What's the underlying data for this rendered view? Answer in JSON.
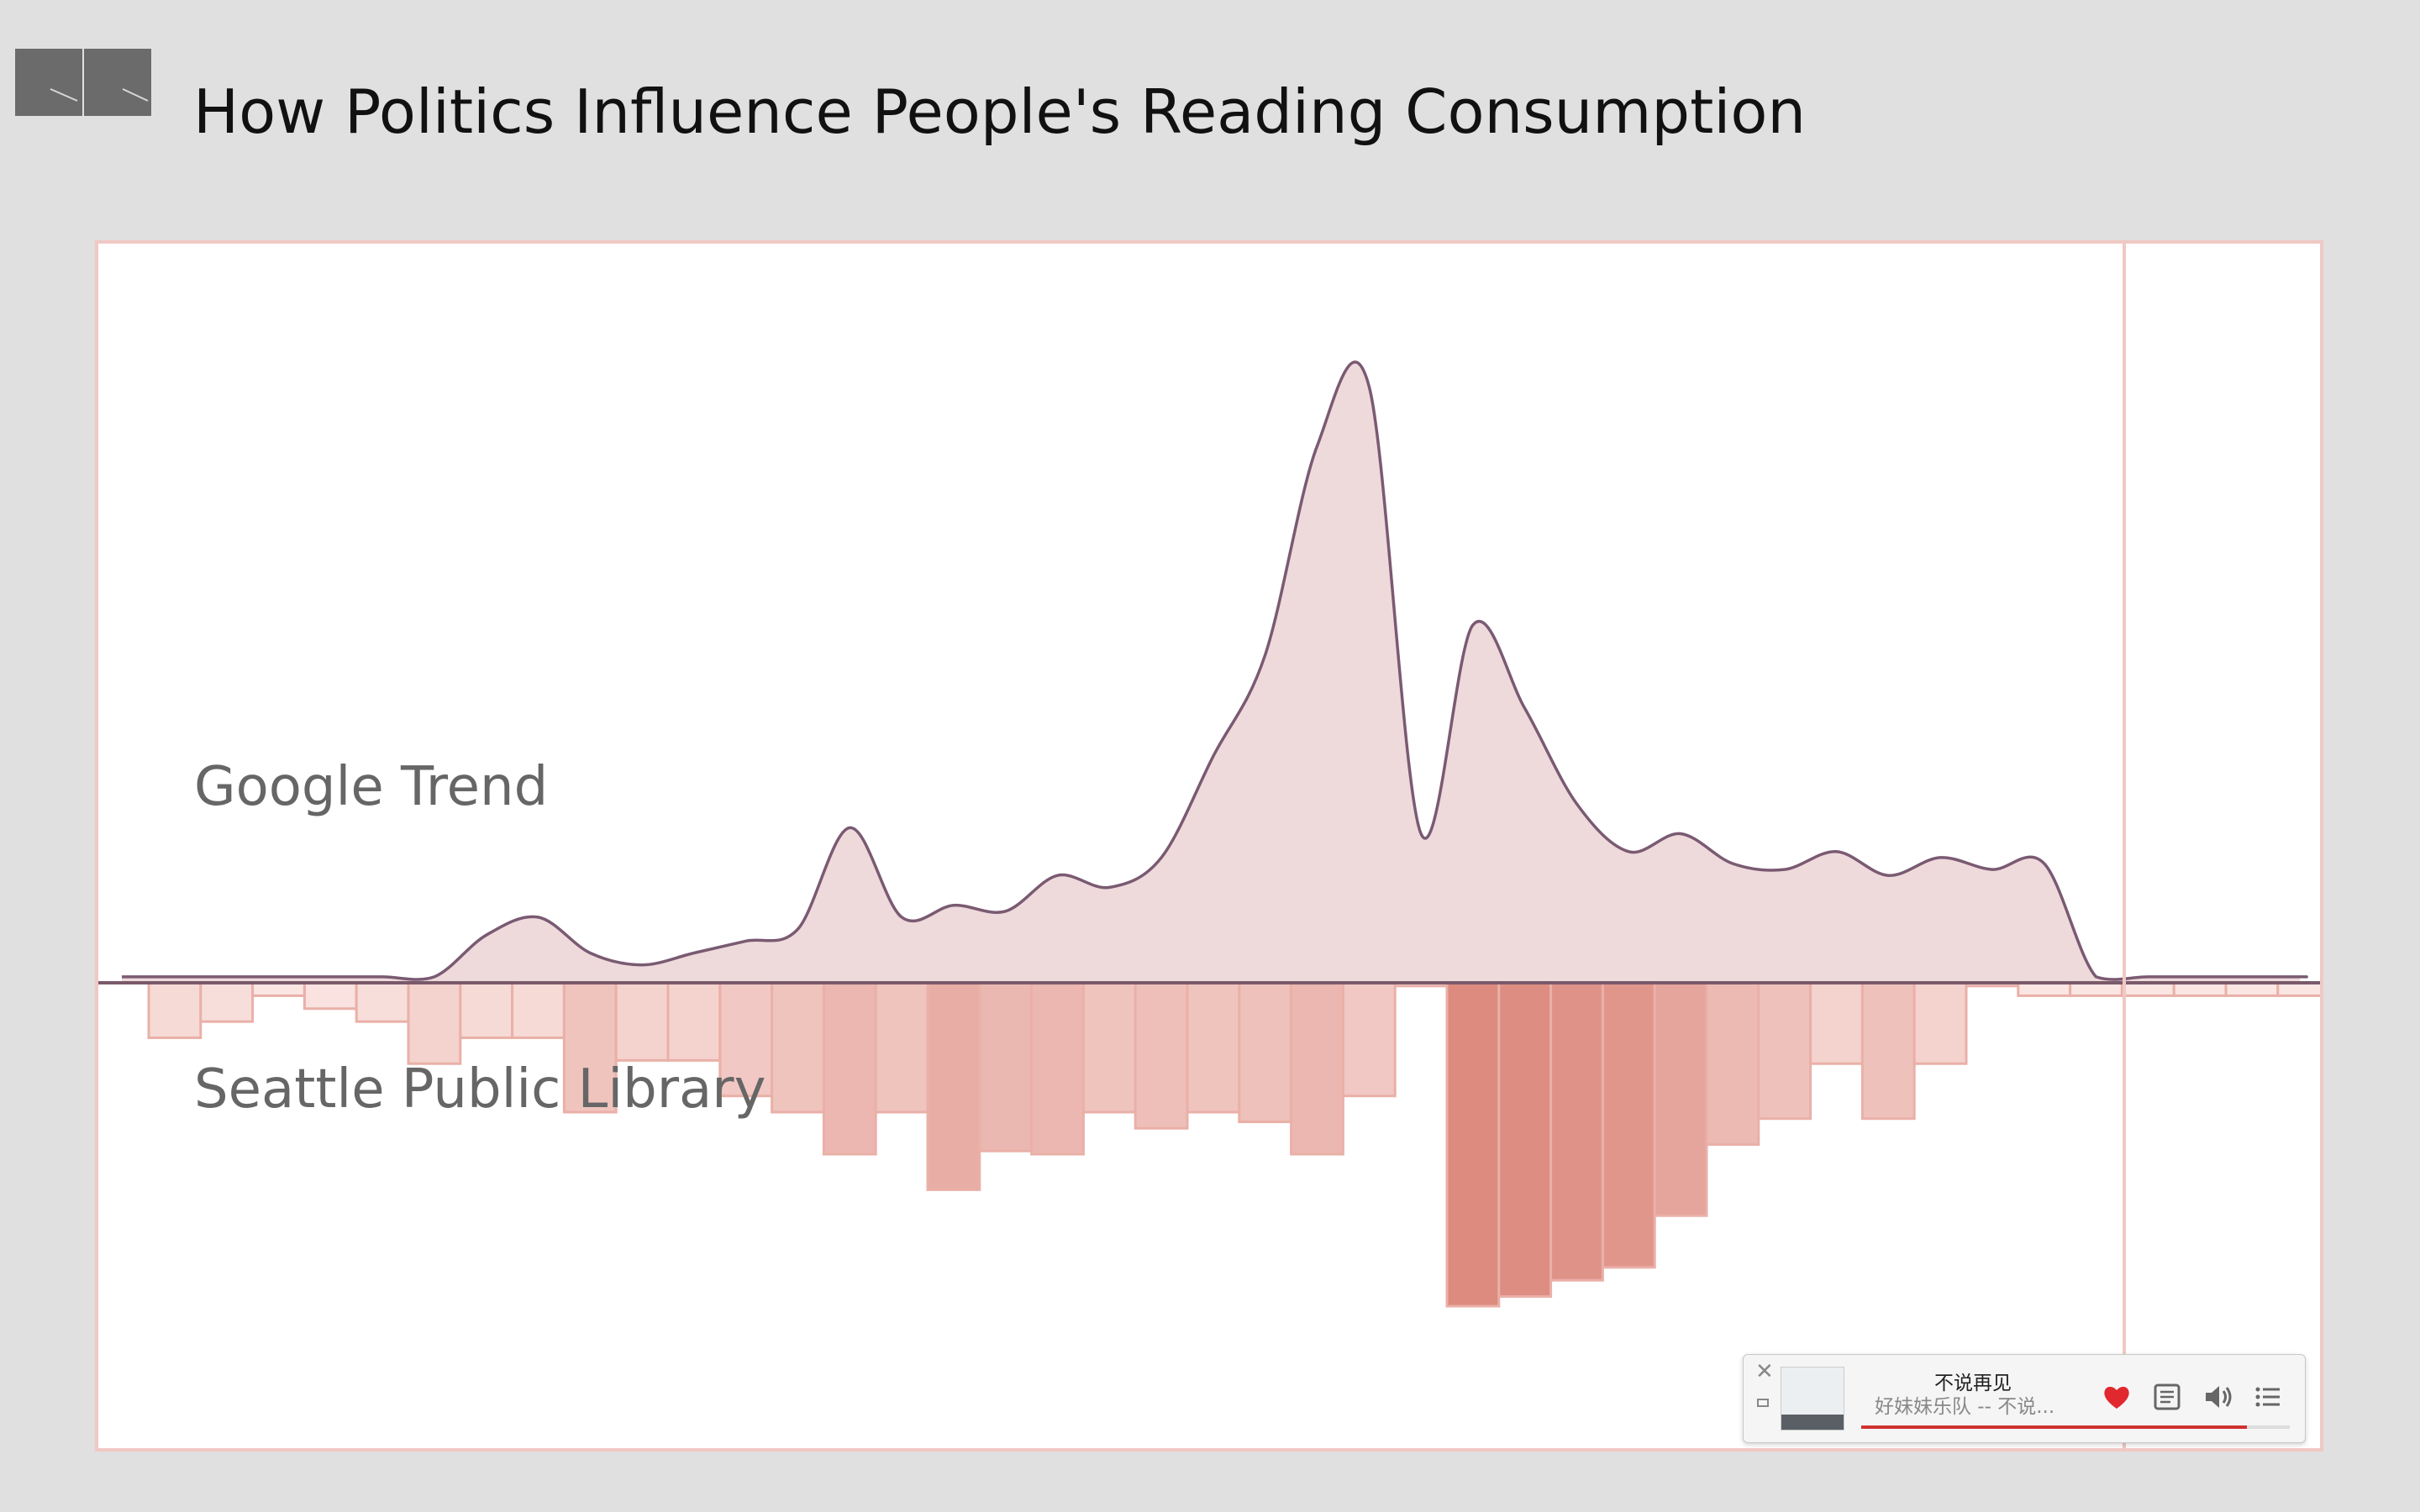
{
  "header": {
    "title": "How Politics Influence People's Reading Consumption"
  },
  "colors": {
    "page_background": "#e0e0e0",
    "trend_fill": "#eedadb",
    "trend_line": "#7a5a72",
    "baseline": "#7a5a6a",
    "bar_stroke": "#eab0a8",
    "bar_fill_low": "#fbeae7",
    "bar_fill_high": "#dd8a7f",
    "marker_line": "#f0c8c4",
    "like_red": "#e0282e"
  },
  "chart_data": {
    "type": "area+bar",
    "title": "How Politics Influence People's Reading Consumption",
    "xlabel": "",
    "ylabel": "",
    "grid": false,
    "series": [
      {
        "name": "Google Trend",
        "type": "area",
        "x": [
          0,
          1,
          2,
          3,
          4,
          5,
          6,
          7,
          8,
          9,
          10,
          11,
          12,
          13,
          14,
          15,
          16,
          17,
          18,
          19,
          20,
          21,
          22,
          23,
          24,
          25,
          26,
          27,
          28,
          29,
          30,
          31,
          32,
          33,
          34,
          35,
          36,
          37,
          38,
          39,
          40,
          41,
          42
        ],
        "values": [
          1,
          1,
          1,
          1,
          1,
          1,
          8,
          11,
          5,
          3,
          5,
          7,
          9,
          26,
          11,
          13,
          12,
          18,
          16,
          21,
          38,
          55,
          90,
          100,
          25,
          60,
          46,
          30,
          22,
          25,
          20,
          19,
          22,
          18,
          21,
          19,
          20,
          1,
          1,
          1,
          1,
          1,
          1
        ]
      },
      {
        "name": "Seattle Public Library",
        "type": "bar",
        "x": [
          0,
          1,
          2,
          3,
          4,
          5,
          6,
          7,
          8,
          9,
          10,
          11,
          12,
          13,
          14,
          15,
          16,
          17,
          18,
          19,
          20,
          21,
          22,
          23,
          24,
          25,
          26,
          27,
          28,
          29,
          30,
          31,
          32,
          33,
          34,
          35,
          36,
          37,
          38,
          39,
          40,
          41,
          42
        ],
        "values": [
          17,
          12,
          4,
          8,
          12,
          25,
          17,
          17,
          40,
          24,
          24,
          35,
          40,
          53,
          40,
          64,
          52,
          53,
          40,
          45,
          40,
          43,
          53,
          35,
          1,
          100,
          97,
          92,
          88,
          72,
          50,
          42,
          25,
          42,
          25,
          1,
          4,
          4,
          4,
          4,
          4,
          4,
          4
        ]
      }
    ],
    "ylim_top": [
      0,
      100
    ],
    "ylim_bottom": [
      0,
      100
    ]
  },
  "music_player": {
    "song": "不说再见",
    "artist_line": "好妹妹乐队 -- 不说...",
    "progress": 0.9
  }
}
